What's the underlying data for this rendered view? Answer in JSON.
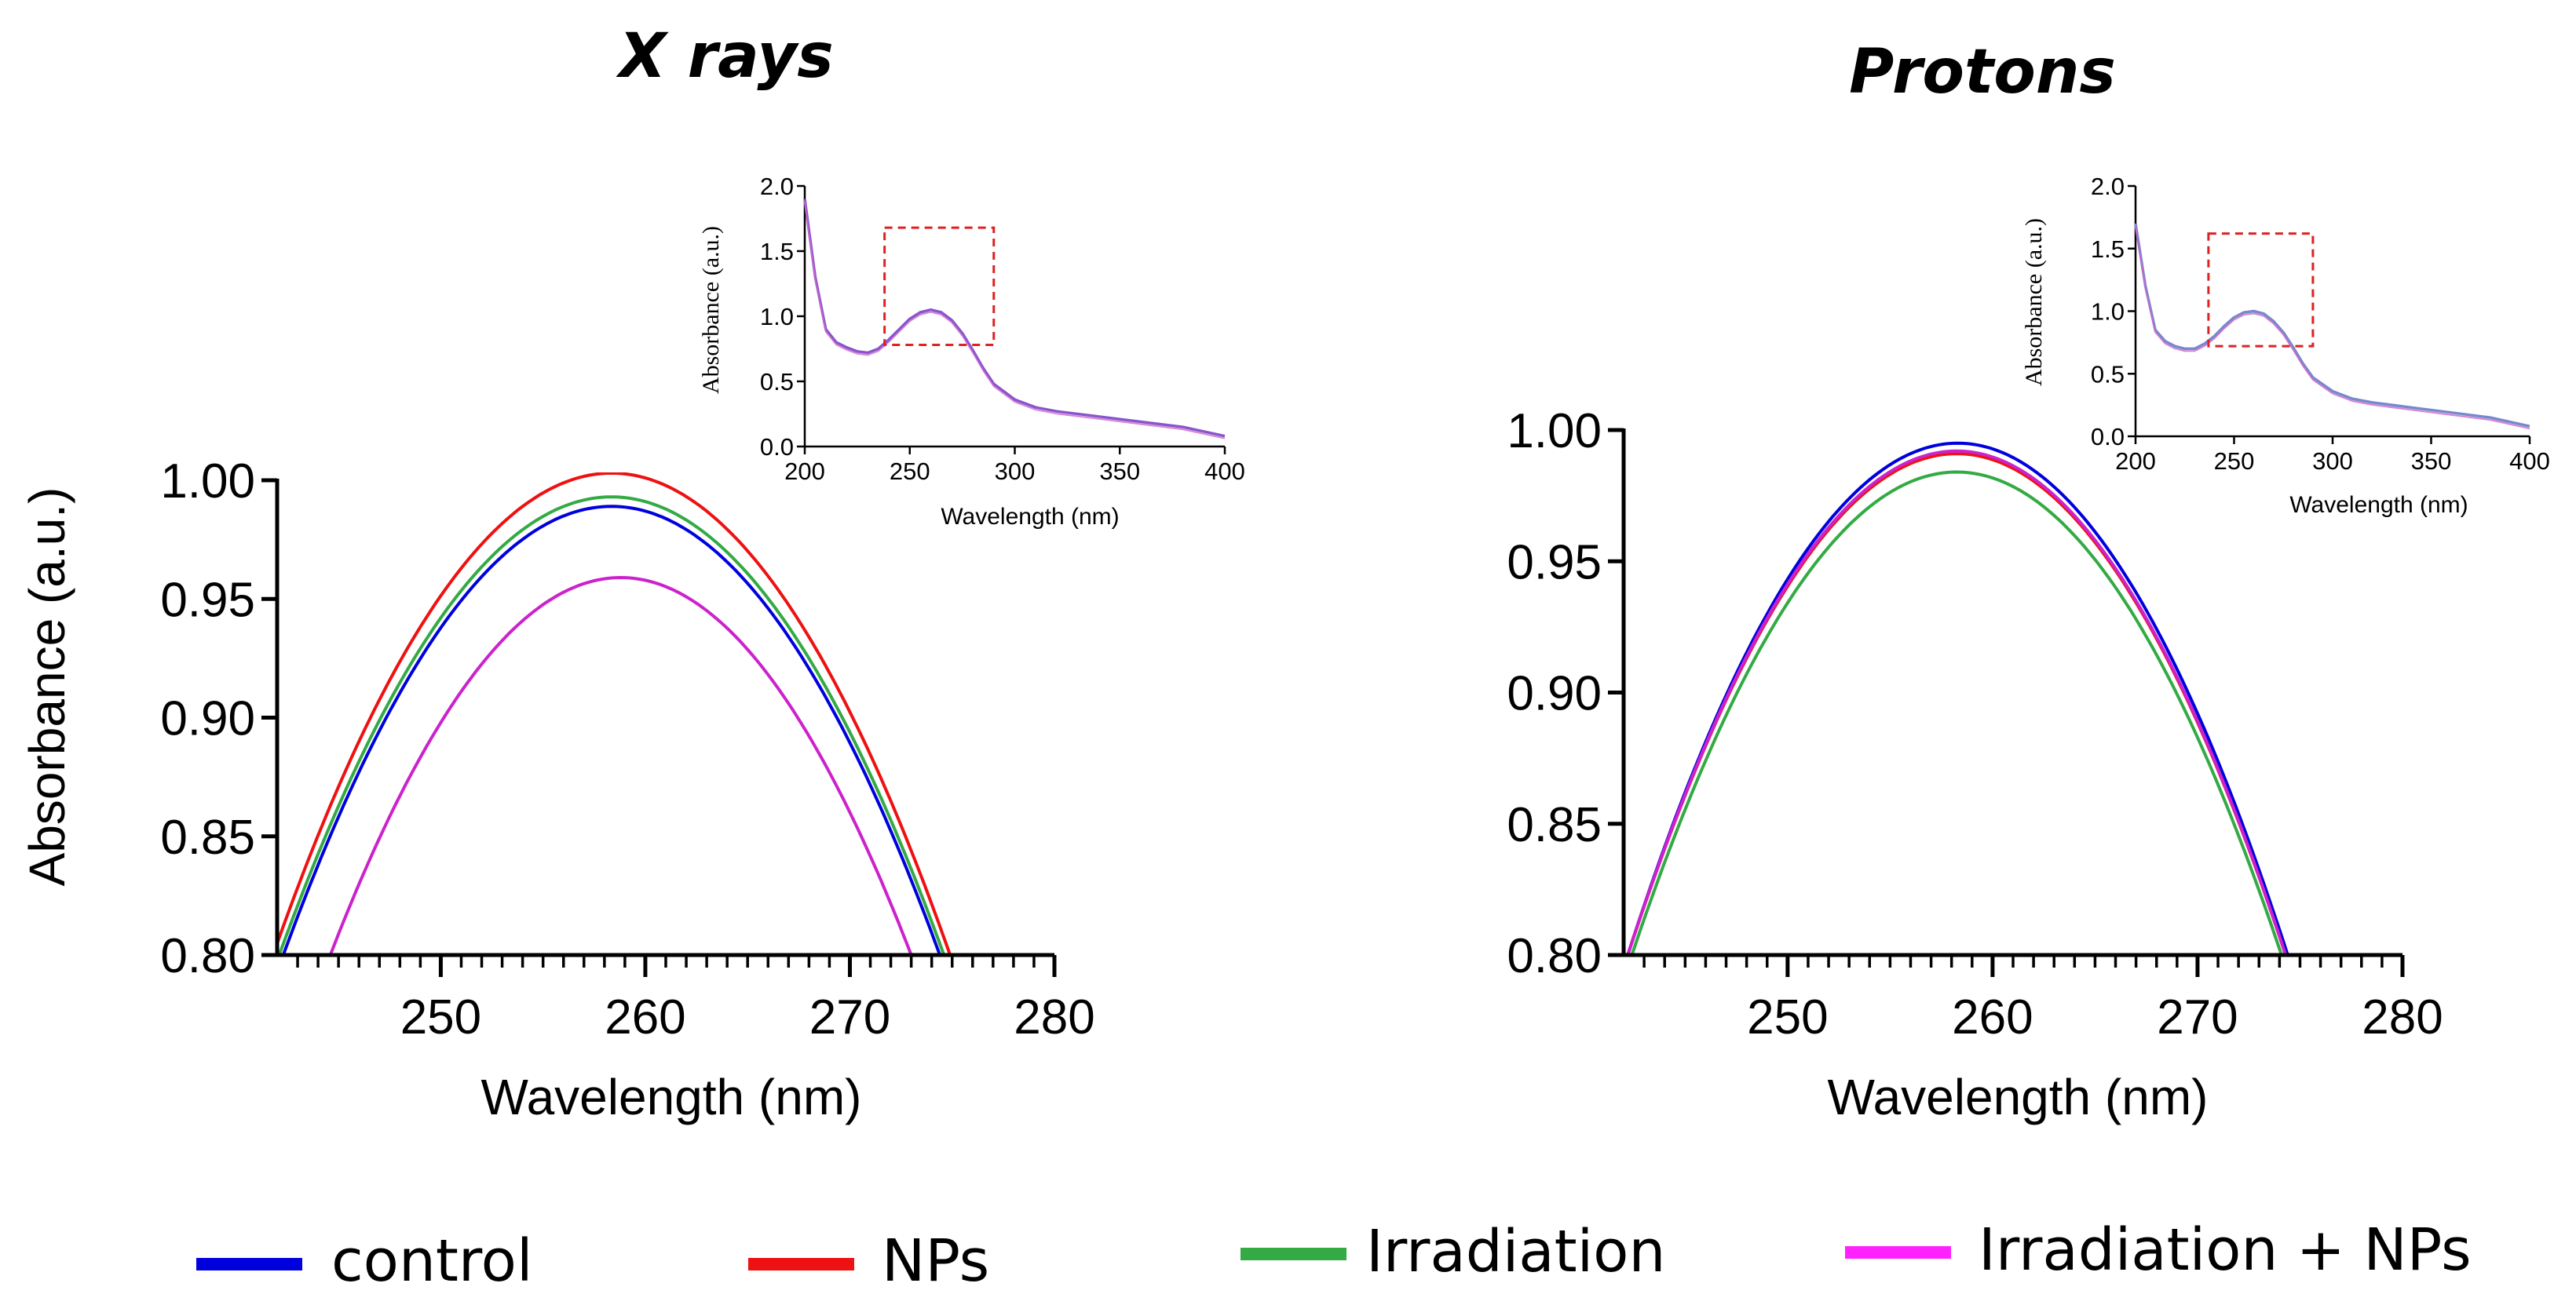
{
  "chart_data": [
    {
      "type": "line",
      "title": "X rays",
      "xlabel": "Wavelength (nm)",
      "ylabel": "Absorbance (a.u.)",
      "xlim": [
        242,
        280
      ],
      "ylim": [
        0.8,
        1.0
      ],
      "xticks": [
        250,
        260,
        270,
        280
      ],
      "xtick_labels": [
        "250",
        "260",
        "270",
        "280"
      ],
      "yticks": [
        0.8,
        0.85,
        0.9,
        0.95,
        1.0
      ],
      "ytick_labels": [
        "0.80",
        "0.85",
        "0.90",
        "0.95",
        "1.00"
      ],
      "series": [
        {
          "name": "control",
          "color": "#0000dd",
          "peak_x": 259.6,
          "peak_y": 0.989,
          "x_at_080": [
            242.3,
            274.4
          ]
        },
        {
          "name": "NPs",
          "color": "#ee1111",
          "peak_x": 259.6,
          "peak_y": 1.003,
          "x_at_080": [
            241.8,
            274.9
          ]
        },
        {
          "name": "Irradiation",
          "color": "#33aa44",
          "peak_x": 259.6,
          "peak_y": 0.993,
          "x_at_080": [
            242.1,
            274.6
          ]
        },
        {
          "name": "Irradiation + NPs",
          "color": "#cc22cc",
          "peak_x": 259.1,
          "peak_y": 0.959,
          "x_at_080": [
            244.6,
            273.0
          ]
        }
      ],
      "inset": {
        "xlabel": "Wavelength (nm)",
        "ylabel": "Absorbance (a.u.)",
        "xlim": [
          200,
          400
        ],
        "ylim": [
          0.0,
          2.0
        ],
        "xticks": [
          200,
          250,
          300,
          350,
          400
        ],
        "xtick_labels": [
          "200",
          "250",
          "300",
          "350",
          "400"
        ],
        "yticks": [
          0.0,
          0.5,
          1.0,
          1.5,
          2.0
        ],
        "ytick_labels": [
          "0.0",
          "0.5",
          "1.0",
          "1.5",
          "2.0"
        ],
        "zoom_box": {
          "x": [
            238,
            290
          ],
          "y": [
            0.78,
            1.68
          ],
          "color": "#dd2222"
        },
        "x": [
          200,
          205,
          210,
          215,
          220,
          225,
          230,
          235,
          240,
          245,
          250,
          255,
          260,
          265,
          270,
          275,
          280,
          285,
          290,
          300,
          310,
          320,
          340,
          360,
          380,
          400
        ],
        "y": [
          1.9,
          1.3,
          0.9,
          0.8,
          0.76,
          0.73,
          0.72,
          0.75,
          0.82,
          0.9,
          0.98,
          1.03,
          1.05,
          1.03,
          0.97,
          0.87,
          0.74,
          0.6,
          0.48,
          0.36,
          0.3,
          0.27,
          0.23,
          0.19,
          0.15,
          0.08
        ],
        "line_color": "#8855cc"
      }
    },
    {
      "type": "line",
      "title": "Protons",
      "xlabel": "Wavelength (nm)",
      "ylabel": "",
      "xlim": [
        242,
        280
      ],
      "ylim": [
        0.8,
        1.0
      ],
      "xticks": [
        250,
        260,
        270,
        280
      ],
      "xtick_labels": [
        "250",
        "260",
        "270",
        "280"
      ],
      "yticks": [
        0.8,
        0.85,
        0.9,
        0.95,
        1.0
      ],
      "ytick_labels": [
        "0.80",
        "0.85",
        "0.90",
        "0.95",
        "1.00"
      ],
      "series": [
        {
          "name": "control",
          "color": "#0000dd",
          "peak_x": 259.6,
          "peak_y": 0.995,
          "x_at_080": [
            242.2,
            274.4
          ]
        },
        {
          "name": "NPs",
          "color": "#ee1111",
          "peak_x": 259.6,
          "peak_y": 0.991,
          "x_at_080": [
            242.2,
            274.3
          ]
        },
        {
          "name": "Irradiation",
          "color": "#33aa44",
          "peak_x": 259.6,
          "peak_y": 0.984,
          "x_at_080": [
            242.4,
            274.1
          ]
        },
        {
          "name": "Irradiation + NPs",
          "color": "#cc22cc",
          "peak_x": 259.6,
          "peak_y": 0.992,
          "x_at_080": [
            242.2,
            274.3
          ]
        }
      ],
      "inset": {
        "xlabel": "Wavelength (nm)",
        "ylabel": "Absorbance (a.u.)",
        "xlim": [
          200,
          400
        ],
        "ylim": [
          0.0,
          2.0
        ],
        "xticks": [
          200,
          250,
          300,
          350,
          400
        ],
        "xtick_labels": [
          "200",
          "250",
          "300",
          "350",
          "400"
        ],
        "yticks": [
          0.0,
          0.5,
          1.0,
          1.5,
          2.0
        ],
        "ytick_labels": [
          "0.0",
          "0.5",
          "1.0",
          "1.5",
          "2.0"
        ],
        "zoom_box": {
          "x": [
            237,
            290
          ],
          "y": [
            0.72,
            1.62
          ],
          "color": "#dd2222"
        },
        "x": [
          200,
          205,
          210,
          215,
          220,
          225,
          230,
          235,
          240,
          245,
          250,
          255,
          260,
          265,
          270,
          275,
          280,
          285,
          290,
          300,
          310,
          320,
          340,
          360,
          380,
          400
        ],
        "y": [
          1.7,
          1.2,
          0.85,
          0.76,
          0.72,
          0.7,
          0.7,
          0.74,
          0.8,
          0.88,
          0.95,
          0.99,
          1.0,
          0.98,
          0.92,
          0.83,
          0.71,
          0.58,
          0.47,
          0.36,
          0.3,
          0.27,
          0.23,
          0.19,
          0.15,
          0.08
        ],
        "line_color": "#7788cc"
      }
    }
  ],
  "legend": [
    {
      "label": "control",
      "color": "#0000dd"
    },
    {
      "label": "NPs",
      "color": "#ee1111"
    },
    {
      "label": "Irradiation",
      "color": "#33aa44"
    },
    {
      "label": "Irradiation + NPs",
      "color": "#ff22ff"
    }
  ]
}
